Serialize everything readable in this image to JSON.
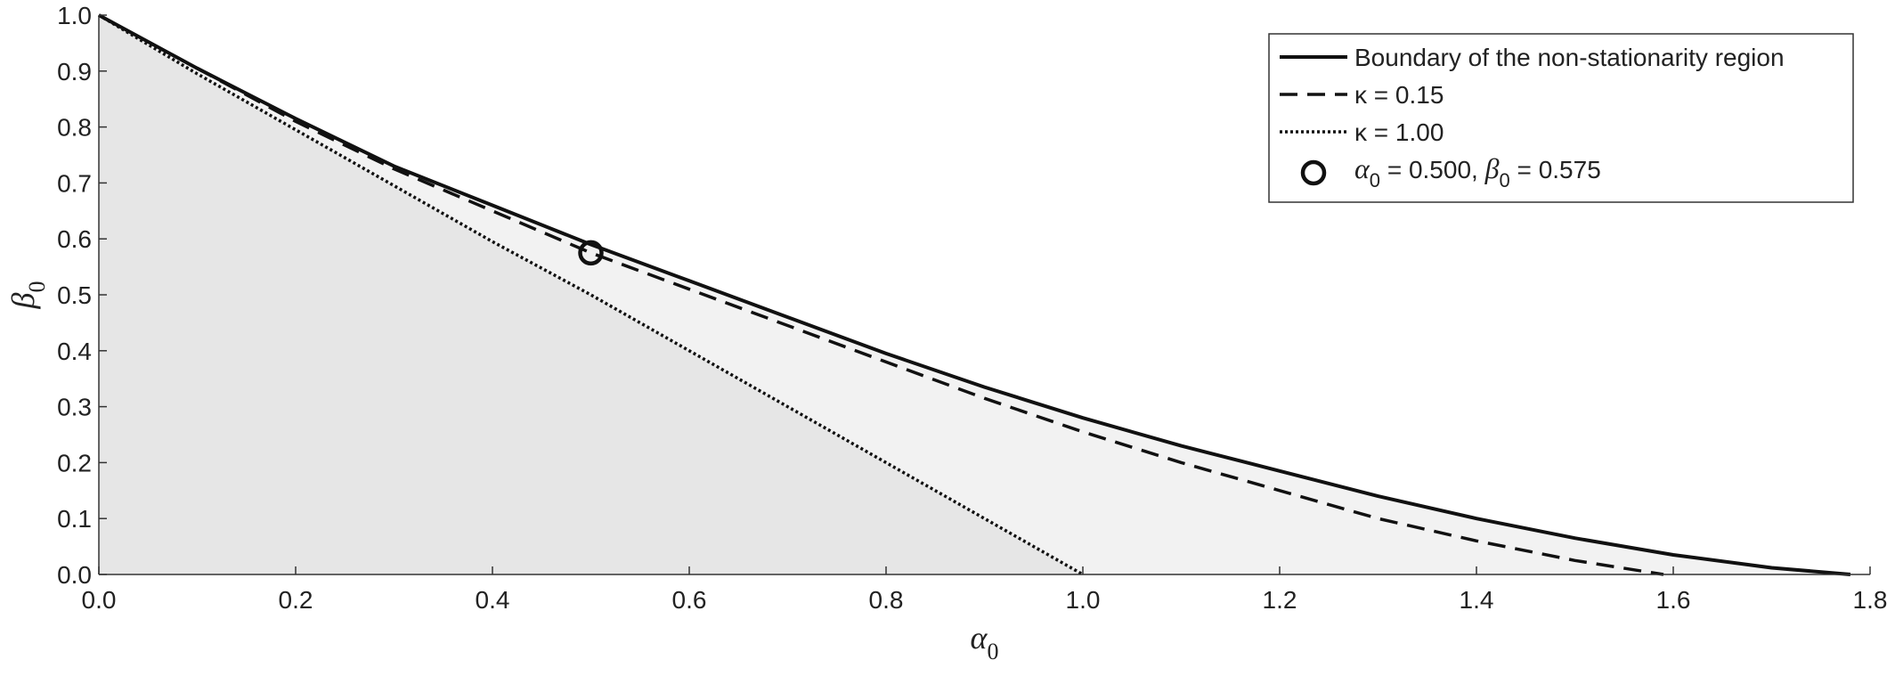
{
  "chart_data": {
    "type": "line",
    "title": "",
    "xlabel": {
      "symbol": "α",
      "subscript": "0"
    },
    "ylabel": {
      "symbol": "β",
      "subscript": "0"
    },
    "xlim": [
      0,
      1.8
    ],
    "ylim": [
      0,
      1
    ],
    "x_ticks": [
      "0.0",
      "0.2",
      "0.4",
      "0.6",
      "0.8",
      "1.0",
      "1.2",
      "1.4",
      "1.6",
      "1.8"
    ],
    "y_ticks": [
      "0.0",
      "0.1",
      "0.2",
      "0.3",
      "0.4",
      "0.5",
      "0.6",
      "0.7",
      "0.8",
      "0.9",
      "1.0"
    ],
    "grid": false,
    "legend_position": "top-right",
    "series": [
      {
        "name": "Boundary of the non-stationarity region",
        "style": "solid",
        "x": [
          0,
          0.1,
          0.2,
          0.3,
          0.4,
          0.5,
          0.6,
          0.7,
          0.8,
          0.9,
          1.0,
          1.1,
          1.2,
          1.3,
          1.4,
          1.5,
          1.6,
          1.7,
          1.78
        ],
        "y": [
          1.0,
          0.905,
          0.815,
          0.73,
          0.66,
          0.59,
          0.525,
          0.46,
          0.395,
          0.335,
          0.28,
          0.23,
          0.185,
          0.14,
          0.1,
          0.065,
          0.035,
          0.012,
          0.0
        ]
      },
      {
        "name": "κ = 0.15",
        "style": "dashed",
        "x": [
          0,
          0.1,
          0.2,
          0.3,
          0.4,
          0.5,
          0.6,
          0.7,
          0.8,
          0.9,
          1.0,
          1.1,
          1.2,
          1.3,
          1.4,
          1.5,
          1.59
        ],
        "y": [
          1.0,
          0.905,
          0.81,
          0.725,
          0.65,
          0.575,
          0.51,
          0.445,
          0.38,
          0.315,
          0.255,
          0.2,
          0.15,
          0.1,
          0.06,
          0.025,
          0.0
        ]
      },
      {
        "name": "κ = 1.00",
        "style": "dotted",
        "x": [
          0,
          0.1,
          0.2,
          0.3,
          0.4,
          0.5,
          0.6,
          0.7,
          0.8,
          0.9,
          1.0
        ],
        "y": [
          1.0,
          0.895,
          0.795,
          0.695,
          0.595,
          0.5,
          0.4,
          0.3,
          0.2,
          0.1,
          0.0
        ]
      }
    ],
    "marker": {
      "x": 0.5,
      "y": 0.575,
      "label": {
        "a_sym": "α",
        "a_sub": "0",
        "a_val": " = 0.500, ",
        "b_sym": "β",
        "b_sub": "0",
        "b_val": " = 0.575"
      }
    },
    "colors": {
      "line": "#111111",
      "fill_dark": "#e6e6e6",
      "fill_light": "#f2f2f2",
      "axis": "#333333"
    }
  }
}
